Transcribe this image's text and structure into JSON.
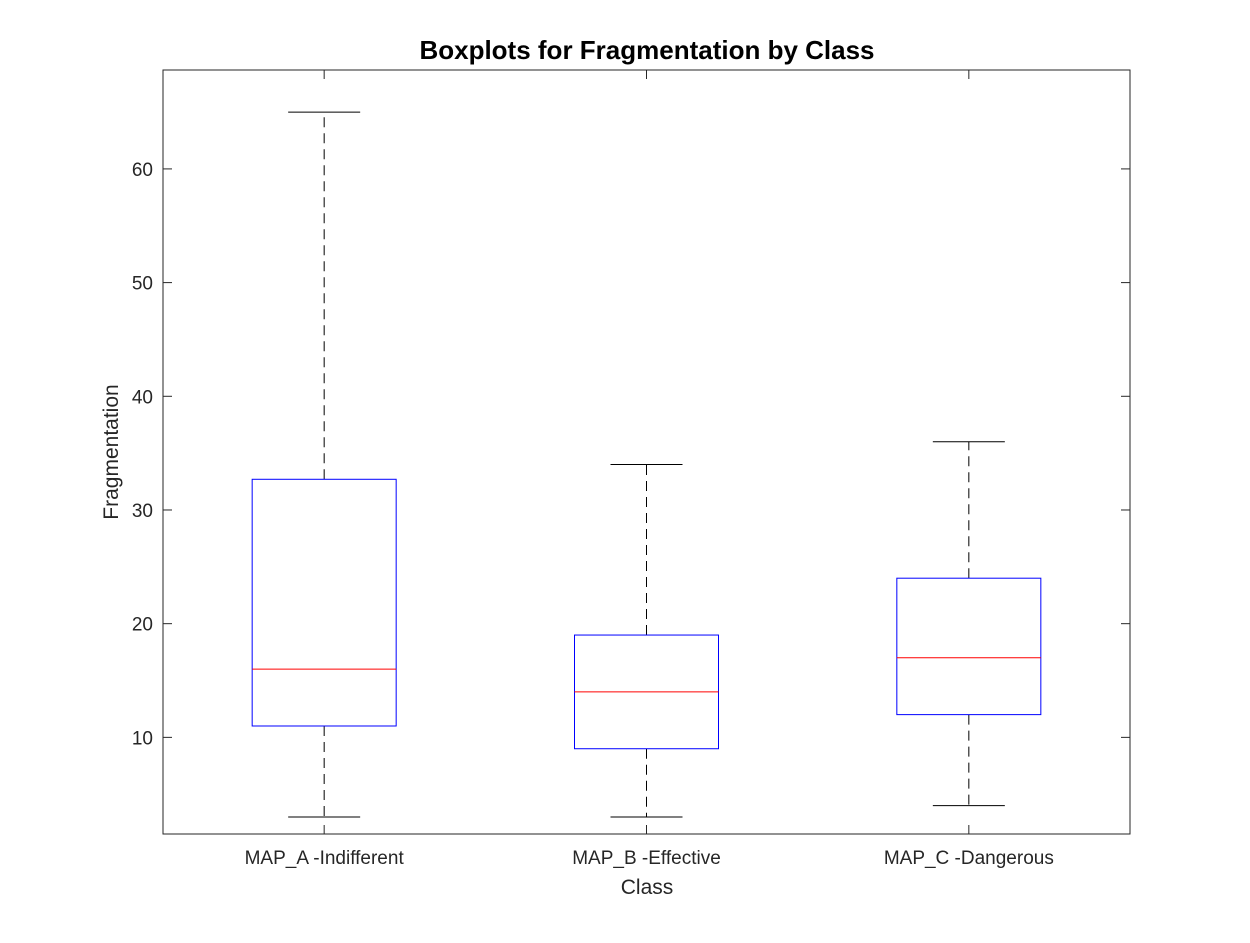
{
  "chart_data": {
    "type": "boxplot",
    "title": "Boxplots for Fragmentation by Class",
    "xlabel": "Class",
    "ylabel": "Fragmentation",
    "categories": [
      "MAP_A -Indifferent",
      "MAP_B -Effective",
      "MAP_C -Dangerous"
    ],
    "boxes": [
      {
        "category": "MAP_A -Indifferent",
        "whisker_low": 3,
        "q1": 11,
        "median": 16,
        "q3": 32.7,
        "whisker_high": 65
      },
      {
        "category": "MAP_B -Effective",
        "whisker_low": 3,
        "q1": 9,
        "median": 14,
        "q3": 19,
        "whisker_high": 34
      },
      {
        "category": "MAP_C -Dangerous",
        "whisker_low": 4,
        "q1": 12,
        "median": 17,
        "q3": 24,
        "whisker_high": 36
      }
    ],
    "ylim": [
      1.5,
      68.7
    ],
    "yticks": [
      10,
      20,
      30,
      40,
      50,
      60
    ],
    "grid": false,
    "colors": {
      "box": "#0000ff",
      "median": "#ff0000",
      "whisker": "#000000",
      "axes": "#262626"
    }
  }
}
